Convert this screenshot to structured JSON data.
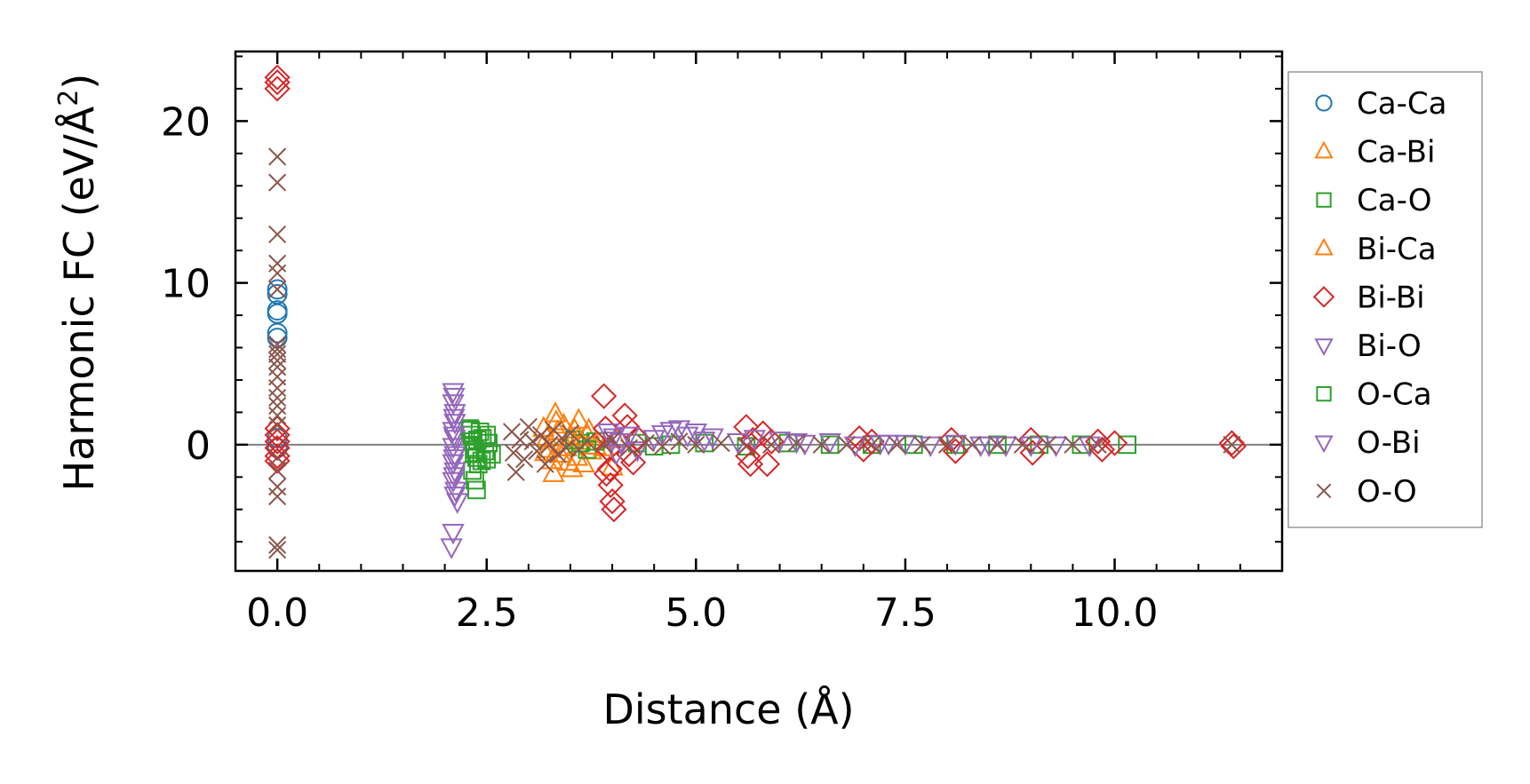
{
  "chart_data": {
    "type": "scatter",
    "title": "",
    "xlabel": "Distance (Å)",
    "ylabel_main": "Harmonic FC (eV/Å",
    "ylabel_sup": "2",
    "ylabel_close": ")",
    "xlim": [
      -0.5,
      12.0
    ],
    "ylim": [
      -7.8,
      24.3
    ],
    "x_ticks": [
      0.0,
      2.5,
      5.0,
      7.5,
      10.0
    ],
    "x_tick_labels": [
      "0.0",
      "2.5",
      "5.0",
      "7.5",
      "10.0"
    ],
    "x_minor_step": 0.5,
    "y_ticks": [
      0,
      10,
      20
    ],
    "y_tick_labels": [
      "0",
      "10",
      "20"
    ],
    "y_minor_step": 2,
    "zero_line": true,
    "grid": false,
    "legend_position": "outside-right",
    "series": [
      {
        "name": "Ca-Ca",
        "color": "#1f77b4",
        "marker": "circle",
        "points": [
          [
            0,
            9.6
          ],
          [
            0,
            9.3
          ],
          [
            0,
            8.3
          ],
          [
            0,
            8.1
          ],
          [
            0,
            6.9
          ],
          [
            0,
            6.6
          ],
          [
            0,
            0.4
          ],
          [
            0,
            -0.2
          ]
        ]
      },
      {
        "name": "Ca-Bi",
        "color": "#ff7f0e",
        "marker": "triangle-up",
        "points": [
          [
            3.18,
            1.0
          ],
          [
            3.22,
            0.4
          ],
          [
            3.25,
            -0.3
          ],
          [
            3.28,
            -1.0
          ],
          [
            3.3,
            -1.8
          ],
          [
            3.32,
            1.9
          ],
          [
            3.35,
            0.8
          ],
          [
            3.38,
            -0.6
          ],
          [
            3.42,
            1.2
          ],
          [
            3.45,
            -0.2
          ],
          [
            3.5,
            0.5
          ],
          [
            3.52,
            -1.5
          ],
          [
            3.55,
            0.9
          ],
          [
            3.58,
            -0.8
          ],
          [
            3.6,
            1.5
          ],
          [
            3.62,
            0.2
          ],
          [
            3.66,
            -1.2
          ],
          [
            3.7,
            0.6
          ],
          [
            3.75,
            -0.4
          ],
          [
            3.8,
            -0.1
          ],
          [
            4.0,
            -1.4
          ],
          [
            4.05,
            0.3
          ]
        ]
      },
      {
        "name": "Ca-O",
        "color": "#2ca02c",
        "marker": "square",
        "points": [
          [
            2.3,
            1.0
          ],
          [
            2.32,
            0.6
          ],
          [
            2.34,
            0.2
          ],
          [
            2.36,
            -0.3
          ],
          [
            2.38,
            -0.8
          ],
          [
            2.4,
            -1.2
          ],
          [
            2.33,
            -1.6
          ],
          [
            2.36,
            -2.2
          ],
          [
            2.38,
            -2.8
          ],
          [
            2.42,
            0.8
          ],
          [
            2.45,
            0.4
          ],
          [
            2.48,
            -0.4
          ],
          [
            2.5,
            -0.9
          ],
          [
            2.52,
            0.1
          ],
          [
            2.56,
            -0.6
          ],
          [
            3.55,
            0.3
          ],
          [
            3.62,
            0.1
          ],
          [
            3.7,
            -0.3
          ],
          [
            3.8,
            0.2
          ],
          [
            4.3,
            0.1
          ],
          [
            4.5,
            -0.1
          ],
          [
            4.7,
            0.0
          ],
          [
            5.1,
            0.1
          ],
          [
            5.6,
            -0.1
          ],
          [
            6.1,
            0.1
          ],
          [
            6.6,
            0.0
          ],
          [
            7.1,
            0.0
          ],
          [
            7.6,
            0.0
          ],
          [
            8.1,
            0.0
          ],
          [
            8.6,
            0.0
          ],
          [
            9.1,
            0.0
          ],
          [
            9.6,
            0.0
          ],
          [
            10.15,
            0.0
          ]
        ]
      },
      {
        "name": "Bi-Ca",
        "color": "#ff7f0e",
        "marker": "triangle-up",
        "points": [
          [
            3.2,
            -0.5
          ],
          [
            3.33,
            1.4
          ],
          [
            3.48,
            -1.1
          ],
          [
            3.6,
            0.4
          ],
          [
            3.72,
            0.9
          ],
          [
            3.9,
            -0.2
          ]
        ]
      },
      {
        "name": "Bi-Bi",
        "color": "#d62728",
        "marker": "diamond",
        "points": [
          [
            0,
            22.7
          ],
          [
            0,
            22.4
          ],
          [
            0,
            22.0
          ],
          [
            0,
            1.0
          ],
          [
            0,
            0.6
          ],
          [
            0,
            0.2
          ],
          [
            0,
            -0.2
          ],
          [
            0,
            -0.7
          ],
          [
            0,
            -1.0
          ],
          [
            3.9,
            3.0
          ],
          [
            3.92,
            1.0
          ],
          [
            3.95,
            -0.3
          ],
          [
            3.97,
            -1.5
          ],
          [
            3.98,
            -2.5
          ],
          [
            4.0,
            -3.5
          ],
          [
            4.02,
            -4.0
          ],
          [
            3.93,
            -1.8
          ],
          [
            4.15,
            1.8
          ],
          [
            4.18,
            1.1
          ],
          [
            4.2,
            -0.6
          ],
          [
            4.25,
            -1.1
          ],
          [
            4.3,
            0.4
          ],
          [
            5.6,
            1.1
          ],
          [
            5.62,
            -0.7
          ],
          [
            5.65,
            -1.2
          ],
          [
            5.68,
            0.3
          ],
          [
            5.8,
            0.7
          ],
          [
            5.85,
            -1.2
          ],
          [
            5.9,
            0.2
          ],
          [
            6.95,
            0.4
          ],
          [
            7.0,
            -0.3
          ],
          [
            7.1,
            0.2
          ],
          [
            8.05,
            0.3
          ],
          [
            8.1,
            -0.4
          ],
          [
            9.0,
            0.3
          ],
          [
            9.02,
            -0.5
          ],
          [
            9.8,
            0.2
          ],
          [
            9.85,
            -0.3
          ],
          [
            10.0,
            0.1
          ],
          [
            11.4,
            0.1
          ],
          [
            11.42,
            -0.1
          ]
        ]
      },
      {
        "name": "Bi-O",
        "color": "#9467bd",
        "marker": "triangle-down",
        "points": [
          [
            2.1,
            3.3
          ],
          [
            2.1,
            2.6
          ],
          [
            2.12,
            2.0
          ],
          [
            2.12,
            1.4
          ],
          [
            2.1,
            0.9
          ],
          [
            2.12,
            0.4
          ],
          [
            2.1,
            -0.1
          ],
          [
            2.12,
            -0.6
          ],
          [
            2.1,
            -1.1
          ],
          [
            2.12,
            -1.6
          ],
          [
            2.1,
            -2.2
          ],
          [
            2.13,
            -2.8
          ],
          [
            2.15,
            -3.5
          ],
          [
            2.1,
            -5.4
          ],
          [
            2.08,
            -6.3
          ],
          [
            3.95,
            0.8
          ],
          [
            4.0,
            0.3
          ],
          [
            4.05,
            -0.5
          ],
          [
            4.1,
            0.2
          ],
          [
            4.2,
            0.6
          ],
          [
            4.3,
            -0.3
          ],
          [
            4.5,
            0.4
          ],
          [
            4.7,
            0.9
          ],
          [
            4.8,
            1.0
          ],
          [
            4.9,
            0.6
          ],
          [
            5.0,
            0.8
          ],
          [
            5.2,
            0.5
          ],
          [
            5.5,
            0.2
          ],
          [
            5.7,
            0.4
          ],
          [
            6.0,
            0.3
          ],
          [
            6.3,
            0.1
          ],
          [
            6.6,
            0.2
          ],
          [
            6.9,
            0.0
          ],
          [
            7.2,
            0.1
          ],
          [
            7.5,
            0.1
          ],
          [
            7.8,
            0.0
          ],
          [
            8.1,
            0.1
          ],
          [
            8.4,
            0.0
          ],
          [
            8.7,
            0.0
          ],
          [
            9.0,
            0.0
          ],
          [
            9.3,
            0.0
          ]
        ]
      },
      {
        "name": "O-Ca",
        "color": "#2ca02c",
        "marker": "square",
        "points": [
          [
            2.31,
            0.9
          ],
          [
            2.35,
            -0.5
          ],
          [
            2.39,
            0.3
          ],
          [
            2.44,
            -1.0
          ],
          [
            2.5,
            0.6
          ]
        ]
      },
      {
        "name": "O-Bi",
        "color": "#9467bd",
        "marker": "triangle-down",
        "points": [
          [
            2.11,
            3.0
          ],
          [
            2.11,
            1.7
          ],
          [
            2.11,
            0.6
          ],
          [
            2.11,
            -0.8
          ],
          [
            2.11,
            -1.9
          ],
          [
            2.12,
            -3.1
          ],
          [
            4.02,
            0.5
          ],
          [
            4.6,
            0.7
          ],
          [
            5.1,
            0.3
          ],
          [
            6.2,
            0.2
          ],
          [
            7.3,
            0.1
          ],
          [
            8.5,
            0.0
          ],
          [
            9.7,
            0.0
          ]
        ]
      },
      {
        "name": "O-O",
        "color": "#8c564b",
        "marker": "x",
        "points": [
          [
            0,
            17.8
          ],
          [
            0,
            16.2
          ],
          [
            0,
            13.0
          ],
          [
            0,
            11.2
          ],
          [
            0,
            10.6
          ],
          [
            0,
            9.6
          ],
          [
            0,
            6.2
          ],
          [
            0,
            5.9
          ],
          [
            0,
            5.6
          ],
          [
            0,
            5.2
          ],
          [
            0,
            4.8
          ],
          [
            0,
            4.2
          ],
          [
            0,
            3.5
          ],
          [
            0,
            2.9
          ],
          [
            0,
            2.4
          ],
          [
            0,
            1.8
          ],
          [
            0,
            1.2
          ],
          [
            0,
            -0.8
          ],
          [
            0,
            -1.6
          ],
          [
            0,
            -2.6
          ],
          [
            0,
            -3.2
          ],
          [
            0,
            -6.2
          ],
          [
            0,
            -6.5
          ],
          [
            2.8,
            0.8
          ],
          [
            2.82,
            -0.5
          ],
          [
            2.85,
            -1.7
          ],
          [
            2.9,
            0.3
          ],
          [
            2.95,
            -0.9
          ],
          [
            3.0,
            1.1
          ],
          [
            3.05,
            0.2
          ],
          [
            3.1,
            -0.4
          ],
          [
            3.15,
            0.6
          ],
          [
            3.2,
            -1.2
          ],
          [
            3.25,
            0.0
          ],
          [
            3.3,
            0.9
          ],
          [
            3.35,
            -0.6
          ],
          [
            3.4,
            0.4
          ],
          [
            3.45,
            -0.2
          ],
          [
            3.5,
            0.7
          ],
          [
            3.6,
            -0.3
          ],
          [
            3.7,
            0.2
          ],
          [
            3.9,
            0.0
          ],
          [
            4.0,
            0.3
          ],
          [
            4.2,
            -0.2
          ],
          [
            4.4,
            0.1
          ],
          [
            4.6,
            -0.1
          ],
          [
            4.8,
            0.2
          ],
          [
            5.0,
            0.0
          ],
          [
            5.3,
            0.1
          ],
          [
            5.6,
            -0.1
          ],
          [
            5.9,
            0.0
          ],
          [
            6.2,
            0.1
          ],
          [
            6.5,
            0.0
          ],
          [
            6.8,
            0.0
          ],
          [
            7.1,
            0.0
          ],
          [
            7.4,
            0.0
          ],
          [
            7.7,
            0.0
          ],
          [
            8.0,
            0.0
          ],
          [
            8.3,
            0.0
          ],
          [
            8.6,
            0.0
          ],
          [
            8.9,
            0.0
          ],
          [
            9.2,
            0.0
          ],
          [
            9.5,
            0.0
          ],
          [
            9.8,
            0.0
          ],
          [
            11.4,
            0.0
          ]
        ]
      }
    ]
  }
}
